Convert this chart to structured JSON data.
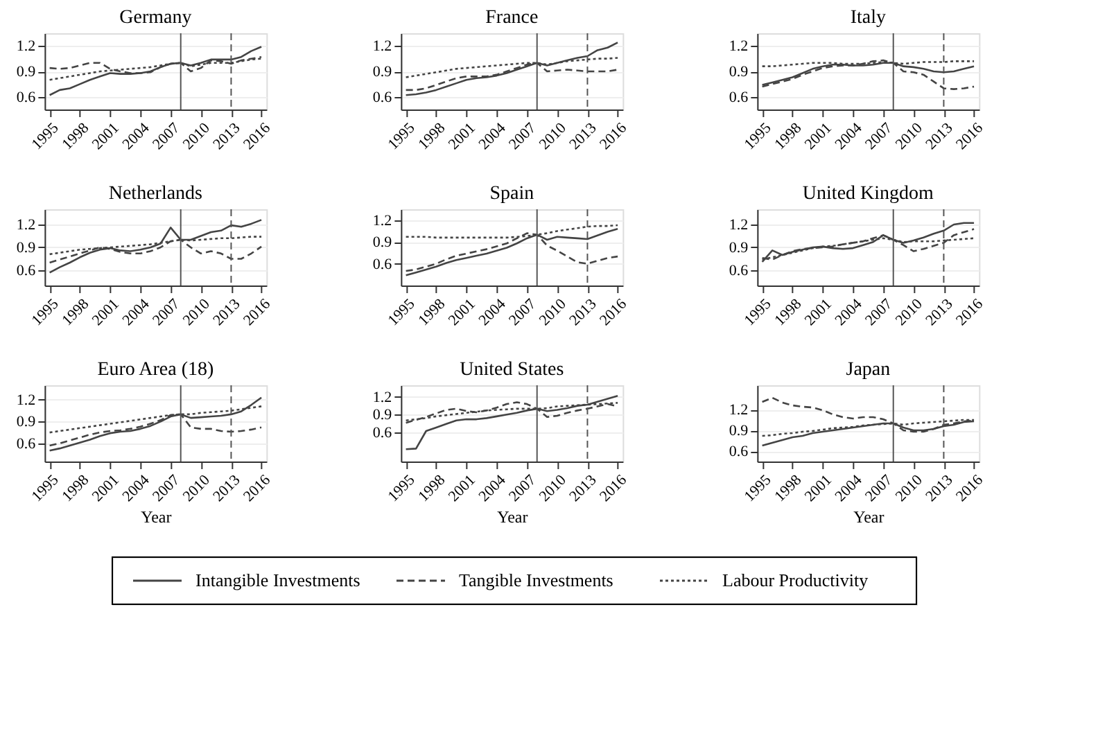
{
  "chart_data": [
    {
      "type": "line",
      "title": "Germany",
      "legend": "bottom",
      "x": [
        1995,
        1996,
        1997,
        1998,
        1999,
        2000,
        2001,
        2002,
        2003,
        2004,
        2005,
        2006,
        2007,
        2008,
        2009,
        2010,
        2011,
        2012,
        2013,
        2014,
        2015,
        2016
      ],
      "xlim": [
        1994.5,
        2016.5
      ],
      "xticks": [
        1995,
        1998,
        2001,
        2004,
        2007,
        2010,
        2013,
        2016
      ],
      "ylim": [
        0.45,
        1.35
      ],
      "yticks": [
        0.6,
        0.9,
        1.2
      ],
      "grid": "y",
      "ref_lines": [
        {
          "axis": "x",
          "value": 2008,
          "color": "#555555",
          "line_style": "solid"
        },
        {
          "axis": "x",
          "value": 2013,
          "color": "#555555",
          "line_style": "dashed"
        }
      ],
      "series": [
        {
          "name": "Intangible Investments",
          "color": "#444444",
          "line_style": "solid",
          "values": [
            0.62,
            0.68,
            0.7,
            0.75,
            0.8,
            0.84,
            0.88,
            0.87,
            0.87,
            0.88,
            0.9,
            0.95,
            0.99,
            1.0,
            0.97,
            1.0,
            1.04,
            1.04,
            1.04,
            1.07,
            1.14,
            1.19
          ]
        },
        {
          "name": "Tangible Investments",
          "color": "#444444",
          "line_style": "dashed",
          "values": [
            0.94,
            0.93,
            0.94,
            0.97,
            1.0,
            1.0,
            0.93,
            0.9,
            0.88,
            0.88,
            0.89,
            0.95,
            0.99,
            1.0,
            0.9,
            0.94,
            1.03,
            1.02,
            0.99,
            1.03,
            1.05,
            1.07
          ]
        },
        {
          "name": "Labour Productivity",
          "color": "#444444",
          "line_style": "dotted",
          "values": [
            0.8,
            0.82,
            0.84,
            0.86,
            0.88,
            0.9,
            0.91,
            0.92,
            0.93,
            0.94,
            0.95,
            0.97,
            0.99,
            1.0,
            0.96,
            0.98,
            1.0,
            1.0,
            1.0,
            1.02,
            1.04,
            1.05
          ]
        }
      ]
    },
    {
      "type": "line",
      "title": "France",
      "legend": "bottom",
      "x": [
        1995,
        1996,
        1997,
        1998,
        1999,
        2000,
        2001,
        2002,
        2003,
        2004,
        2005,
        2006,
        2007,
        2008,
        2009,
        2010,
        2011,
        2012,
        2013,
        2014,
        2015,
        2016
      ],
      "xlim": [
        1994.5,
        2016.5
      ],
      "xticks": [
        1995,
        1998,
        2001,
        2004,
        2007,
        2010,
        2013,
        2016
      ],
      "ylim": [
        0.45,
        1.35
      ],
      "yticks": [
        0.6,
        0.9,
        1.2
      ],
      "grid": "y",
      "ref_lines": [
        {
          "axis": "x",
          "value": 2008,
          "color": "#555555",
          "line_style": "solid"
        },
        {
          "axis": "x",
          "value": 2013,
          "color": "#555555",
          "line_style": "dashed"
        }
      ],
      "series": [
        {
          "name": "Intangible Investments",
          "color": "#444444",
          "line_style": "solid",
          "values": [
            0.62,
            0.63,
            0.65,
            0.68,
            0.72,
            0.76,
            0.8,
            0.82,
            0.83,
            0.85,
            0.88,
            0.92,
            0.96,
            1.0,
            0.97,
            1.0,
            1.03,
            1.06,
            1.08,
            1.15,
            1.18,
            1.24
          ]
        },
        {
          "name": "Tangible Investments",
          "color": "#444444",
          "line_style": "dashed",
          "values": [
            0.68,
            0.68,
            0.7,
            0.74,
            0.78,
            0.82,
            0.84,
            0.84,
            0.84,
            0.86,
            0.9,
            0.94,
            0.98,
            1.0,
            0.9,
            0.91,
            0.92,
            0.91,
            0.9,
            0.9,
            0.9,
            0.92
          ]
        },
        {
          "name": "Labour Productivity",
          "color": "#444444",
          "line_style": "dotted",
          "values": [
            0.83,
            0.85,
            0.87,
            0.89,
            0.91,
            0.93,
            0.94,
            0.95,
            0.96,
            0.97,
            0.98,
            0.99,
            1.0,
            1.0,
            0.98,
            1.0,
            1.02,
            1.03,
            1.04,
            1.05,
            1.05,
            1.06
          ]
        }
      ]
    },
    {
      "type": "line",
      "title": "Italy",
      "legend": "bottom",
      "x": [
        1995,
        1996,
        1997,
        1998,
        1999,
        2000,
        2001,
        2002,
        2003,
        2004,
        2005,
        2006,
        2007,
        2008,
        2009,
        2010,
        2011,
        2012,
        2013,
        2014,
        2015,
        2016
      ],
      "xlim": [
        1994.5,
        2016.5
      ],
      "xticks": [
        1995,
        1998,
        2001,
        2004,
        2007,
        2010,
        2013,
        2016
      ],
      "ylim": [
        0.45,
        1.35
      ],
      "yticks": [
        0.6,
        0.9,
        1.2
      ],
      "grid": "y",
      "ref_lines": [
        {
          "axis": "x",
          "value": 2008,
          "color": "#555555",
          "line_style": "solid"
        },
        {
          "axis": "x",
          "value": 2013,
          "color": "#555555",
          "line_style": "dashed"
        }
      ],
      "series": [
        {
          "name": "Intangible Investments",
          "color": "#444444",
          "line_style": "solid",
          "values": [
            0.74,
            0.77,
            0.8,
            0.83,
            0.88,
            0.93,
            0.96,
            0.98,
            0.98,
            0.97,
            0.97,
            0.98,
            1.0,
            1.0,
            0.96,
            0.95,
            0.93,
            0.9,
            0.89,
            0.9,
            0.93,
            0.96
          ]
        },
        {
          "name": "Tangible Investments",
          "color": "#444444",
          "line_style": "dashed",
          "values": [
            0.72,
            0.75,
            0.78,
            0.81,
            0.86,
            0.9,
            0.94,
            0.96,
            0.97,
            0.97,
            0.99,
            1.02,
            1.03,
            1.0,
            0.9,
            0.89,
            0.86,
            0.78,
            0.7,
            0.69,
            0.7,
            0.72
          ]
        },
        {
          "name": "Labour Productivity",
          "color": "#444444",
          "line_style": "dotted",
          "values": [
            0.96,
            0.96,
            0.97,
            0.98,
            0.99,
            1.0,
            1.0,
            1.0,
            0.99,
            0.99,
            0.99,
            1.0,
            1.01,
            1.0,
            0.99,
            1.0,
            1.01,
            1.01,
            1.01,
            1.02,
            1.02,
            1.02
          ]
        }
      ]
    },
    {
      "type": "line",
      "title": "Netherlands",
      "legend": "bottom",
      "x": [
        1995,
        1996,
        1997,
        1998,
        1999,
        2000,
        2001,
        2002,
        2003,
        2004,
        2005,
        2006,
        2007,
        2008,
        2009,
        2010,
        2011,
        2012,
        2013,
        2014,
        2015,
        2016
      ],
      "xlim": [
        1994.5,
        2016.5
      ],
      "xticks": [
        1995,
        1998,
        2001,
        2004,
        2007,
        2010,
        2013,
        2016
      ],
      "ylim": [
        0.4,
        1.4
      ],
      "yticks": [
        0.6,
        0.9,
        1.2
      ],
      "grid": "y",
      "ref_lines": [
        {
          "axis": "x",
          "value": 2008,
          "color": "#555555",
          "line_style": "solid"
        },
        {
          "axis": "x",
          "value": 2013,
          "color": "#555555",
          "line_style": "dashed"
        }
      ],
      "series": [
        {
          "name": "Intangible Investments",
          "color": "#444444",
          "line_style": "solid",
          "values": [
            0.57,
            0.64,
            0.7,
            0.77,
            0.83,
            0.87,
            0.89,
            0.86,
            0.85,
            0.87,
            0.9,
            0.95,
            1.16,
            1.0,
            1.0,
            1.05,
            1.1,
            1.12,
            1.19,
            1.17,
            1.21,
            1.26
          ]
        },
        {
          "name": "Tangible Investments",
          "color": "#444444",
          "line_style": "dashed",
          "values": [
            0.7,
            0.74,
            0.78,
            0.82,
            0.86,
            0.9,
            0.88,
            0.84,
            0.82,
            0.82,
            0.85,
            0.9,
            0.98,
            1.0,
            0.9,
            0.82,
            0.85,
            0.82,
            0.75,
            0.75,
            0.82,
            0.91
          ]
        },
        {
          "name": "Labour Productivity",
          "color": "#444444",
          "line_style": "dotted",
          "values": [
            0.81,
            0.83,
            0.85,
            0.87,
            0.88,
            0.89,
            0.9,
            0.91,
            0.92,
            0.93,
            0.94,
            0.96,
            0.98,
            1.0,
            0.99,
            1.0,
            1.01,
            1.02,
            1.02,
            1.03,
            1.04,
            1.04
          ]
        }
      ]
    },
    {
      "type": "line",
      "title": "Spain",
      "legend": "bottom",
      "x": [
        1995,
        1996,
        1997,
        1998,
        1999,
        2000,
        2001,
        2002,
        2003,
        2004,
        2005,
        2006,
        2007,
        2008,
        2009,
        2010,
        2011,
        2012,
        2013,
        2014,
        2015,
        2016
      ],
      "xlim": [
        1994.5,
        2016.5
      ],
      "xticks": [
        1995,
        1998,
        2001,
        2004,
        2007,
        2010,
        2013,
        2016
      ],
      "ylim": [
        0.3,
        1.35
      ],
      "yticks": [
        0.6,
        0.9,
        1.2
      ],
      "grid": "y",
      "ref_lines": [
        {
          "axis": "x",
          "value": 2008,
          "color": "#555555",
          "line_style": "solid"
        },
        {
          "axis": "x",
          "value": 2013,
          "color": "#555555",
          "line_style": "dashed"
        }
      ],
      "series": [
        {
          "name": "Intangible Investments",
          "color": "#444444",
          "line_style": "solid",
          "values": [
            0.44,
            0.48,
            0.52,
            0.56,
            0.61,
            0.65,
            0.68,
            0.71,
            0.74,
            0.78,
            0.82,
            0.88,
            0.95,
            1.0,
            0.93,
            0.97,
            0.96,
            0.95,
            0.94,
            0.99,
            1.04,
            1.08
          ]
        },
        {
          "name": "Tangible Investments",
          "color": "#444444",
          "line_style": "dashed",
          "values": [
            0.5,
            0.52,
            0.56,
            0.6,
            0.66,
            0.71,
            0.74,
            0.77,
            0.8,
            0.84,
            0.88,
            0.95,
            1.02,
            1.0,
            0.85,
            0.78,
            0.7,
            0.62,
            0.6,
            0.64,
            0.68,
            0.7
          ]
        },
        {
          "name": "Labour Productivity",
          "color": "#444444",
          "line_style": "dotted",
          "values": [
            0.97,
            0.97,
            0.97,
            0.96,
            0.96,
            0.96,
            0.96,
            0.96,
            0.96,
            0.96,
            0.96,
            0.97,
            0.98,
            1.0,
            1.02,
            1.05,
            1.07,
            1.09,
            1.11,
            1.12,
            1.12,
            1.13
          ]
        }
      ]
    },
    {
      "type": "line",
      "title": "United Kingdom",
      "legend": "bottom",
      "x": [
        1995,
        1996,
        1997,
        1998,
        1999,
        2000,
        2001,
        2002,
        2003,
        2004,
        2005,
        2006,
        2007,
        2008,
        2009,
        2010,
        2011,
        2012,
        2013,
        2014,
        2015,
        2016
      ],
      "xlim": [
        1994.5,
        2016.5
      ],
      "xticks": [
        1995,
        1998,
        2001,
        2004,
        2007,
        2010,
        2013,
        2016
      ],
      "ylim": [
        0.4,
        1.4
      ],
      "yticks": [
        0.6,
        0.9,
        1.2
      ],
      "grid": "y",
      "ref_lines": [
        {
          "axis": "x",
          "value": 2008,
          "color": "#555555",
          "line_style": "solid"
        },
        {
          "axis": "x",
          "value": 2013,
          "color": "#555555",
          "line_style": "dashed"
        }
      ],
      "series": [
        {
          "name": "Intangible Investments",
          "color": "#444444",
          "line_style": "solid",
          "values": [
            0.71,
            0.86,
            0.8,
            0.84,
            0.87,
            0.9,
            0.91,
            0.89,
            0.88,
            0.89,
            0.93,
            0.97,
            1.06,
            1.0,
            0.96,
            0.99,
            1.03,
            1.08,
            1.12,
            1.2,
            1.22,
            1.22
          ]
        },
        {
          "name": "Tangible Investments",
          "color": "#444444",
          "line_style": "dashed",
          "values": [
            0.76,
            0.74,
            0.8,
            0.85,
            0.88,
            0.89,
            0.9,
            0.91,
            0.94,
            0.96,
            0.98,
            1.02,
            1.06,
            1.0,
            0.93,
            0.85,
            0.88,
            0.92,
            0.96,
            1.06,
            1.1,
            1.14
          ]
        },
        {
          "name": "Labour Productivity",
          "color": "#444444",
          "line_style": "dotted",
          "values": [
            0.74,
            0.77,
            0.8,
            0.83,
            0.86,
            0.89,
            0.91,
            0.92,
            0.94,
            0.96,
            0.98,
            1.0,
            1.02,
            1.0,
            0.97,
            0.98,
            0.98,
            0.98,
            0.99,
            1.0,
            1.01,
            1.02
          ]
        }
      ]
    },
    {
      "type": "line",
      "title": "Euro Area (18)",
      "legend": "bottom",
      "xlabel": "Year",
      "x": [
        1995,
        1996,
        1997,
        1998,
        1999,
        2000,
        2001,
        2002,
        2003,
        2004,
        2005,
        2006,
        2007,
        2008,
        2009,
        2010,
        2011,
        2012,
        2013,
        2014,
        2015,
        2016
      ],
      "xlim": [
        1994.5,
        2016.5
      ],
      "xticks": [
        1995,
        1998,
        2001,
        2004,
        2007,
        2010,
        2013,
        2016
      ],
      "ylim": [
        0.35,
        1.4
      ],
      "yticks": [
        0.6,
        0.9,
        1.2
      ],
      "grid": "y",
      "ref_lines": [
        {
          "axis": "x",
          "value": 2008,
          "color": "#555555",
          "line_style": "solid"
        },
        {
          "axis": "x",
          "value": 2013,
          "color": "#555555",
          "line_style": "dashed"
        }
      ],
      "series": [
        {
          "name": "Intangible Investments",
          "color": "#444444",
          "line_style": "solid",
          "values": [
            0.5,
            0.53,
            0.57,
            0.61,
            0.65,
            0.7,
            0.74,
            0.76,
            0.77,
            0.8,
            0.84,
            0.9,
            0.97,
            1.0,
            0.95,
            0.96,
            0.97,
            0.98,
            1.0,
            1.04,
            1.13,
            1.23
          ]
        },
        {
          "name": "Tangible Investments",
          "color": "#444444",
          "line_style": "dashed",
          "values": [
            0.57,
            0.6,
            0.64,
            0.68,
            0.72,
            0.75,
            0.77,
            0.78,
            0.8,
            0.83,
            0.87,
            0.92,
            0.99,
            1.0,
            0.82,
            0.8,
            0.8,
            0.77,
            0.76,
            0.77,
            0.79,
            0.82
          ]
        },
        {
          "name": "Labour Productivity",
          "color": "#444444",
          "line_style": "dotted",
          "values": [
            0.75,
            0.77,
            0.79,
            0.81,
            0.83,
            0.85,
            0.87,
            0.89,
            0.91,
            0.93,
            0.95,
            0.97,
            0.99,
            1.0,
            1.0,
            1.02,
            1.03,
            1.04,
            1.05,
            1.07,
            1.09,
            1.11
          ]
        }
      ]
    },
    {
      "type": "line",
      "title": "United States",
      "legend": "bottom",
      "xlabel": "Year",
      "x": [
        1995,
        1996,
        1997,
        1998,
        1999,
        2000,
        2001,
        2002,
        2003,
        2004,
        2005,
        2006,
        2007,
        2008,
        2009,
        2010,
        2011,
        2012,
        2013,
        2014,
        2015,
        2016
      ],
      "xlim": [
        1994.5,
        2016.5
      ],
      "xticks": [
        1995,
        1998,
        2001,
        2004,
        2007,
        2010,
        2013,
        2016
      ],
      "ylim": [
        0.1,
        1.4
      ],
      "yticks": [
        0.6,
        0.9,
        1.2
      ],
      "grid": "y",
      "ref_lines": [
        {
          "axis": "x",
          "value": 2008,
          "color": "#555555",
          "line_style": "solid"
        },
        {
          "axis": "x",
          "value": 2013,
          "color": "#555555",
          "line_style": "dashed"
        }
      ],
      "series": [
        {
          "name": "Intangible Investments",
          "color": "#444444",
          "line_style": "solid",
          "values": [
            0.31,
            0.32,
            0.62,
            0.68,
            0.74,
            0.8,
            0.82,
            0.82,
            0.84,
            0.87,
            0.9,
            0.93,
            0.97,
            1.0,
            0.96,
            0.98,
            1.01,
            1.05,
            1.07,
            1.12,
            1.17,
            1.22
          ]
        },
        {
          "name": "Tangible Investments",
          "color": "#444444",
          "line_style": "dashed",
          "values": [
            0.76,
            0.81,
            0.86,
            0.92,
            0.98,
            1.0,
            0.96,
            0.94,
            0.97,
            1.02,
            1.08,
            1.11,
            1.08,
            1.0,
            0.86,
            0.88,
            0.93,
            0.97,
            1.0,
            1.04,
            1.08,
            1.04
          ]
        },
        {
          "name": "Labour Productivity",
          "color": "#444444",
          "line_style": "dotted",
          "values": [
            0.8,
            0.82,
            0.84,
            0.87,
            0.89,
            0.91,
            0.93,
            0.95,
            0.97,
            0.98,
            0.99,
            1.0,
            1.0,
            1.0,
            1.01,
            1.04,
            1.05,
            1.06,
            1.07,
            1.08,
            1.09,
            1.1
          ]
        }
      ]
    },
    {
      "type": "line",
      "title": "Japan",
      "xlabel": "Year",
      "legend": "bottom",
      "x": [
        1995,
        1996,
        1997,
        1998,
        1999,
        2000,
        2001,
        2002,
        2003,
        2004,
        2005,
        2006,
        2007,
        2008,
        2009,
        2010,
        2011,
        2012,
        2013,
        2014,
        2015,
        2016
      ],
      "xlim": [
        1994.5,
        2016.5
      ],
      "xticks": [
        1995,
        1998,
        2001,
        2004,
        2007,
        2010,
        2013,
        2016
      ],
      "ylim": [
        0.45,
        1.55
      ],
      "yticks": [
        0.6,
        0.9,
        1.2
      ],
      "grid": "y",
      "ref_lines": [
        {
          "axis": "x",
          "value": 2008,
          "color": "#555555",
          "line_style": "solid"
        },
        {
          "axis": "x",
          "value": 2013,
          "color": "#555555",
          "line_style": "dashed"
        }
      ],
      "series": [
        {
          "name": "Intangible Investments",
          "color": "#444444",
          "line_style": "solid",
          "values": [
            0.68,
            0.72,
            0.76,
            0.8,
            0.82,
            0.86,
            0.88,
            0.9,
            0.92,
            0.94,
            0.96,
            0.98,
            1.0,
            1.0,
            0.94,
            0.9,
            0.9,
            0.92,
            0.96,
            0.98,
            1.02,
            1.03
          ]
        },
        {
          "name": "Tangible Investments",
          "color": "#444444",
          "line_style": "dashed",
          "values": [
            1.31,
            1.37,
            1.3,
            1.26,
            1.24,
            1.23,
            1.19,
            1.13,
            1.09,
            1.07,
            1.09,
            1.09,
            1.06,
            1.0,
            0.9,
            0.88,
            0.88,
            0.92,
            0.98,
            1.0,
            1.03,
            1.04
          ]
        },
        {
          "name": "Labour Productivity",
          "color": "#444444",
          "line_style": "dotted",
          "values": [
            0.82,
            0.83,
            0.85,
            0.86,
            0.88,
            0.89,
            0.91,
            0.93,
            0.94,
            0.95,
            0.97,
            0.98,
            0.99,
            1.0,
            0.98,
            1.0,
            1.01,
            1.02,
            1.03,
            1.04,
            1.05,
            1.05
          ]
        }
      ]
    }
  ]
}
